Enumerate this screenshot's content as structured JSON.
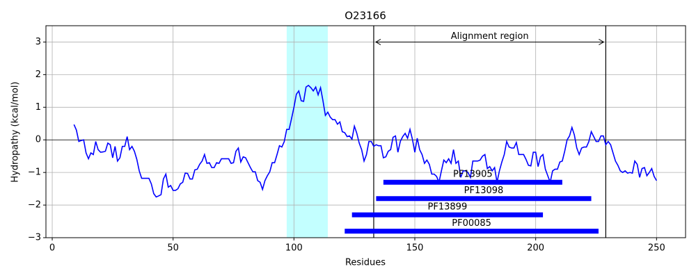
{
  "chart_data": {
    "type": "line",
    "title": "O23166",
    "x_label": "Residues",
    "y_label": "Hydropathy (kcal/mol)",
    "x": [
      9,
      10,
      11,
      12,
      13,
      14,
      15,
      16,
      17,
      18,
      19,
      20,
      21,
      22,
      23,
      24,
      25,
      26,
      27,
      28,
      29,
      30,
      31,
      32,
      33,
      34,
      35,
      36,
      37,
      38,
      39,
      40,
      41,
      42,
      43,
      44,
      45,
      46,
      47,
      48,
      49,
      50,
      51,
      52,
      53,
      54,
      55,
      56,
      57,
      58,
      59,
      60,
      61,
      62,
      63,
      64,
      65,
      66,
      67,
      68,
      69,
      70,
      71,
      72,
      73,
      74,
      75,
      76,
      77,
      78,
      79,
      80,
      81,
      82,
      83,
      84,
      85,
      86,
      87,
      88,
      89,
      90,
      91,
      92,
      93,
      94,
      95,
      96,
      97,
      98,
      99,
      100,
      101,
      102,
      103,
      104,
      105,
      106,
      107,
      108,
      109,
      110,
      111,
      112,
      113,
      114,
      115,
      116,
      117,
      118,
      119,
      120,
      121,
      122,
      123,
      124,
      125,
      126,
      127,
      128,
      129,
      130,
      131,
      132,
      133,
      134,
      135,
      136,
      137,
      138,
      139,
      140,
      141,
      142,
      143,
      144,
      145,
      146,
      147,
      148,
      149,
      150,
      151,
      152,
      153,
      154,
      155,
      156,
      157,
      158,
      159,
      160,
      161,
      162,
      163,
      164,
      165,
      166,
      167,
      168,
      169,
      170,
      171,
      172,
      173,
      174,
      175,
      176,
      177,
      178,
      179,
      180,
      181,
      182,
      183,
      184,
      185,
      186,
      187,
      188,
      189,
      190,
      191,
      192,
      193,
      194,
      195,
      196,
      197,
      198,
      199,
      200,
      201,
      202,
      203,
      204,
      205,
      206,
      207,
      208,
      209,
      210,
      211,
      212,
      213,
      214,
      215,
      216,
      217,
      218,
      219,
      220,
      221,
      222,
      223,
      224,
      225,
      226,
      227,
      228,
      229,
      230,
      231,
      232,
      233,
      234,
      235,
      236,
      237,
      238,
      239,
      240,
      241,
      242,
      243,
      244,
      245,
      246,
      247,
      248,
      249,
      250
    ],
    "series": [
      {
        "color": "#0000ff",
        "values": [
          0.47,
          0.3,
          -0.05,
          -0.02,
          0.0,
          -0.4,
          -0.58,
          -0.4,
          -0.45,
          -0.05,
          -0.3,
          -0.38,
          -0.37,
          -0.35,
          -0.1,
          -0.15,
          -0.55,
          -0.2,
          -0.65,
          -0.55,
          -0.2,
          -0.2,
          0.1,
          -0.3,
          -0.2,
          -0.35,
          -0.6,
          -0.95,
          -1.18,
          -1.18,
          -1.18,
          -1.18,
          -1.35,
          -1.65,
          -1.75,
          -1.72,
          -1.68,
          -1.2,
          -1.05,
          -1.45,
          -1.4,
          -1.55,
          -1.55,
          -1.5,
          -1.35,
          -1.3,
          -1.02,
          -1.03,
          -1.2,
          -1.2,
          -0.92,
          -0.9,
          -0.75,
          -0.65,
          -0.45,
          -0.72,
          -0.7,
          -0.85,
          -0.85,
          -0.7,
          -0.72,
          -0.58,
          -0.58,
          -0.58,
          -0.58,
          -0.72,
          -0.7,
          -0.35,
          -0.25,
          -0.68,
          -0.52,
          -0.55,
          -0.7,
          -0.85,
          -0.98,
          -0.98,
          -1.25,
          -1.3,
          -1.52,
          -1.25,
          -1.1,
          -0.98,
          -0.7,
          -0.7,
          -0.45,
          -0.18,
          -0.22,
          -0.05,
          0.32,
          0.32,
          0.65,
          1.0,
          1.4,
          1.5,
          1.2,
          1.18,
          1.62,
          1.67,
          1.6,
          1.5,
          1.62,
          1.38,
          1.6,
          1.2,
          0.75,
          0.85,
          0.7,
          0.62,
          0.62,
          0.48,
          0.55,
          0.25,
          0.22,
          0.1,
          0.12,
          0.02,
          0.42,
          0.2,
          -0.1,
          -0.3,
          -0.65,
          -0.45,
          -0.05,
          -0.05,
          -0.2,
          -0.15,
          -0.18,
          -0.18,
          -0.55,
          -0.52,
          -0.35,
          -0.3,
          0.08,
          0.12,
          -0.38,
          -0.05,
          0.1,
          0.2,
          0.05,
          0.32,
          0.02,
          -0.38,
          0.05,
          -0.3,
          -0.45,
          -0.72,
          -0.62,
          -0.75,
          -1.05,
          -1.05,
          -1.12,
          -1.3,
          -0.95,
          -0.62,
          -0.7,
          -0.58,
          -0.72,
          -0.3,
          -0.72,
          -0.65,
          -1.15,
          -0.95,
          -0.95,
          -1.0,
          -1.15,
          -0.65,
          -0.65,
          -0.65,
          -0.62,
          -0.5,
          -0.45,
          -0.88,
          -0.82,
          -0.95,
          -0.85,
          -1.3,
          -0.95,
          -0.68,
          -0.45,
          -0.05,
          -0.22,
          -0.25,
          -0.25,
          -0.08,
          -0.45,
          -0.45,
          -0.45,
          -0.6,
          -0.78,
          -0.8,
          -0.38,
          -0.38,
          -0.82,
          -0.52,
          -0.45,
          -0.9,
          -1.1,
          -1.3,
          -0.95,
          -0.9,
          -0.9,
          -0.68,
          -0.65,
          -0.35,
          0.0,
          0.12,
          0.38,
          0.15,
          -0.25,
          -0.45,
          -0.25,
          -0.22,
          -0.22,
          -0.05,
          0.25,
          0.1,
          -0.05,
          -0.05,
          0.12,
          0.12,
          -0.15,
          -0.05,
          -0.15,
          -0.4,
          -0.65,
          -0.78,
          -0.95,
          -1.0,
          -0.95,
          -1.02,
          -1.0,
          -1.02,
          -0.65,
          -0.75,
          -1.15,
          -0.88,
          -0.85,
          -1.1,
          -1.0,
          -0.88,
          -1.12,
          -1.25
        ]
      }
    ],
    "xlim": [
      -2.6,
      262
    ],
    "xticks": [
      0,
      50,
      100,
      150,
      200,
      250
    ],
    "ylim": [
      -3,
      3.5
    ],
    "yticks": [
      {
        "value": -3,
        "label": "−3"
      },
      {
        "value": -2,
        "label": "−2"
      },
      {
        "value": -1,
        "label": "−1"
      },
      0,
      1,
      2,
      3
    ],
    "grid": true,
    "hline": 0,
    "shaded_region": {
      "range": [
        97,
        114
      ],
      "color": "#c3ffff"
    },
    "vlines": [
      133,
      229
    ],
    "annotation": {
      "text": "Alignment region",
      "x": [
        133,
        229
      ],
      "y": 3
    },
    "domains": [
      {
        "name": "PF13905",
        "start": 137,
        "end": 211,
        "y": -1.3
      },
      {
        "name": "PF13098",
        "start": 134,
        "end": 223,
        "y": -1.8
      },
      {
        "name": "PF13899",
        "start": 124,
        "end": 203,
        "y": -2.3
      },
      {
        "name": "PF00085",
        "start": 121,
        "end": 226,
        "y": -2.8
      }
    ],
    "domain_color": "#0000ff"
  }
}
